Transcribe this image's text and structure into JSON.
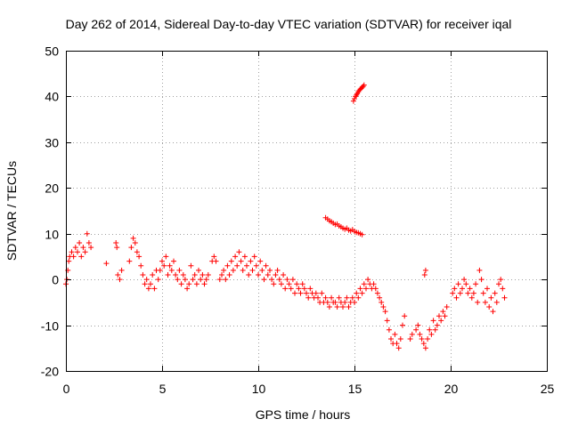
{
  "chart_data": {
    "type": "scatter",
    "title": "Day 262 of 2014, Sidereal Day-to-day VTEC variation (SDTVAR) for receiver iqal",
    "xlabel": "GPS time / hours",
    "ylabel": "SDTVAR / TECUs",
    "xlim": [
      0,
      25
    ],
    "ylim": [
      -20,
      50
    ],
    "xticks": [
      "0",
      "5",
      "10",
      "15",
      "20",
      "25"
    ],
    "yticks": [
      "-20",
      "-10",
      "0",
      "10",
      "20",
      "30",
      "40",
      "50"
    ],
    "grid": true,
    "marker": "+",
    "series": [
      {
        "name": "SDTVAR",
        "color": "#ff0000",
        "segments": [
          {
            "x": [
              0.0,
              0.05,
              0.1,
              0.15,
              0.2,
              0.3,
              0.4,
              0.5,
              0.6,
              0.7,
              0.8,
              0.9,
              1.0,
              1.1,
              1.2,
              1.3
            ],
            "y": [
              -1,
              0,
              2,
              4,
              5,
              6,
              5,
              7,
              6,
              8,
              5,
              7,
              6,
              10,
              8,
              7
            ]
          },
          {
            "x": [
              2.1
            ],
            "y": [
              3.5
            ]
          },
          {
            "x": [
              2.6,
              2.65
            ],
            "y": [
              8,
              7
            ]
          },
          {
            "x": [
              2.7,
              2.8,
              2.9
            ],
            "y": [
              1,
              0,
              2
            ]
          },
          {
            "x": [
              3.3,
              3.4,
              3.5,
              3.6,
              3.7,
              3.8,
              3.9,
              4.0,
              4.1,
              4.2,
              4.3,
              4.4,
              4.5,
              4.6,
              4.7,
              4.8
            ],
            "y": [
              4,
              7,
              9,
              8,
              6,
              5,
              3,
              1,
              -1,
              0,
              -2,
              -1,
              1,
              -2,
              2,
              0
            ]
          },
          {
            "x": [
              4.9,
              5.0,
              5.1,
              5.2,
              5.3,
              5.4,
              5.5,
              5.6,
              5.7,
              5.8,
              5.9,
              6.0,
              6.1,
              6.2,
              6.3,
              6.4,
              6.5,
              6.6,
              6.7,
              6.8,
              6.9,
              7.0,
              7.1,
              7.2,
              7.3,
              7.4
            ],
            "y": [
              2,
              4,
              3,
              5,
              1,
              3,
              2,
              4,
              1,
              0,
              2,
              -1,
              1,
              0,
              -2,
              -1,
              3,
              0,
              1,
              -1,
              2,
              0,
              1,
              -1,
              0,
              1
            ]
          },
          {
            "x": [
              7.6,
              7.7,
              7.8
            ],
            "y": [
              4,
              5,
              4
            ]
          },
          {
            "x": [
              8.0,
              8.1,
              8.2,
              8.3,
              8.4,
              8.5,
              8.6,
              8.7,
              8.8,
              8.9,
              9.0,
              9.1,
              9.2,
              9.3,
              9.4,
              9.5,
              9.6,
              9.7,
              9.8,
              9.9,
              10.0,
              10.1,
              10.2,
              10.3,
              10.4,
              10.5,
              10.6,
              10.7,
              10.8,
              10.9,
              11.0,
              11.1,
              11.2,
              11.3,
              11.4,
              11.5,
              11.6,
              11.7,
              11.8,
              11.9,
              12.0,
              12.1,
              12.2,
              12.3,
              12.4,
              12.5,
              12.6,
              12.7,
              12.8,
              12.9,
              13.0
            ],
            "y": [
              0,
              1,
              2,
              0,
              3,
              1,
              4,
              2,
              5,
              3,
              6,
              4,
              2,
              5,
              3,
              1,
              4,
              2,
              5,
              3,
              1,
              4,
              2,
              0,
              3,
              1,
              2,
              0,
              -1,
              1,
              2,
              0,
              -1,
              1,
              -2,
              0,
              -1,
              -2,
              0,
              -3,
              -1,
              -2,
              -3,
              -1,
              -2,
              -3,
              -4,
              -2,
              -3,
              -4,
              -3
            ]
          },
          {
            "x": [
              13.1,
              13.2,
              13.3,
              13.4,
              13.5,
              13.6,
              13.7,
              13.8,
              13.9,
              14.0,
              14.1,
              14.2,
              14.3,
              14.4,
              14.5,
              14.6,
              14.7,
              14.8,
              14.9,
              15.0,
              15.1,
              15.2,
              15.3,
              15.4,
              15.5,
              15.6,
              15.7,
              15.8,
              15.9,
              16.0
            ],
            "y": [
              -4,
              -5,
              -3,
              -5,
              -4,
              -5,
              -6,
              -4,
              -5,
              -5,
              -6,
              -4,
              -5,
              -6,
              -5,
              -4,
              -6,
              -5,
              -4,
              -5,
              -3,
              -4,
              -2,
              -3,
              -1,
              -2,
              0,
              -1,
              -2,
              -1
            ]
          },
          {
            "x": [
              16.1,
              16.2,
              16.3,
              16.4,
              16.5,
              16.6,
              16.7,
              16.8,
              16.9,
              17.0,
              17.1,
              17.2,
              17.3,
              17.4,
              17.5,
              17.6
            ],
            "y": [
              -2,
              -3,
              -4,
              -5,
              -6,
              -7,
              -9,
              -11,
              -13,
              -14,
              -12,
              -14,
              -15,
              -13,
              -10,
              -8
            ]
          },
          {
            "x": [
              17.9,
              18.0
            ],
            "y": [
              -13,
              -12
            ]
          },
          {
            "x": [
              18.2,
              18.3,
              18.4,
              18.5,
              18.6,
              18.7,
              18.8,
              18.9,
              19.0,
              19.1,
              19.2,
              19.3,
              19.4,
              19.5,
              19.6,
              19.7,
              19.8
            ],
            "y": [
              -11,
              -10,
              -12,
              -13,
              -14,
              -15,
              -13,
              -11,
              -12,
              -9,
              -11,
              -10,
              -8,
              -9,
              -7,
              -8,
              -6
            ]
          },
          {
            "x": [
              18.65,
              18.7
            ],
            "y": [
              1,
              2
            ]
          },
          {
            "x": [
              20.1,
              20.2,
              20.3,
              20.4,
              20.5,
              20.6,
              20.7,
              20.8,
              20.9,
              21.0,
              21.1,
              21.2,
              21.3,
              21.4,
              21.5,
              21.6,
              21.7,
              21.8,
              21.9,
              22.0,
              22.1,
              22.2,
              22.3,
              22.4,
              22.5,
              22.6,
              22.7,
              22.8
            ],
            "y": [
              -3,
              -2,
              -4,
              -1,
              -3,
              -2,
              0,
              -1,
              -3,
              -2,
              -4,
              -3,
              -1,
              -5,
              2,
              0,
              -3,
              -5,
              -2,
              -6,
              -4,
              -7,
              -3,
              -5,
              -1,
              0,
              -2,
              -4
            ]
          },
          {
            "x": [
              13.5,
              13.6,
              13.7,
              13.8,
              13.9,
              14.0,
              14.1,
              14.2,
              14.3,
              14.4,
              14.5,
              14.6,
              14.7,
              14.8,
              14.9,
              15.0,
              15.1,
              15.2,
              15.3,
              15.4
            ],
            "y": [
              13.5,
              13.2,
              12.8,
              12.6,
              12.3,
              12.0,
              12.1,
              11.7,
              11.5,
              11.2,
              11.0,
              11.2,
              10.8,
              10.6,
              10.9,
              10.5,
              10.3,
              10.2,
              10.0,
              9.8
            ]
          },
          {
            "x": [
              14.95,
              15.0,
              15.05,
              15.1,
              15.15,
              15.2,
              15.25,
              15.3,
              15.35,
              15.4,
              15.45,
              15.5
            ],
            "y": [
              39,
              39.5,
              40,
              40.3,
              40.6,
              41,
              41.3,
              41.6,
              41.8,
              42,
              42.2,
              42.5
            ]
          }
        ]
      }
    ]
  }
}
